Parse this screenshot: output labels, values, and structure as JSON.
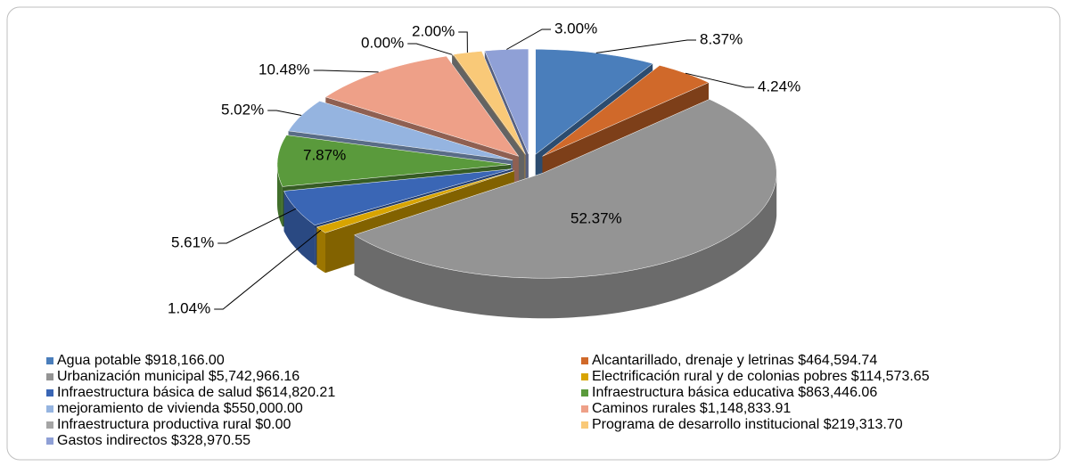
{
  "chart_data": {
    "type": "pie",
    "categories": [
      "Agua potable $918,166.00",
      "Alcantarillado, drenaje y letrinas $464,594.74",
      "Urbanización municipal $5,742,966.16",
      "Electrificación rural y de colonias pobres $114,573.65",
      "Infraestructura básica de salud $614,820.21",
      "Infraestructura básica educativa $863,446.06",
      "mejoramiento de vivienda $550,000.00",
      "Caminos rurales $1,148,833.91",
      "Infraestructura productiva rural $0.00",
      "Programa de desarrollo institucional $219,313.70",
      "Gastos indirectos $328,970.55"
    ],
    "values": [
      8.37,
      4.24,
      52.37,
      1.04,
      5.61,
      7.87,
      5.02,
      10.48,
      0,
      2,
      3
    ],
    "value_labels": [
      "8.37%",
      "4.24%",
      "52.37%",
      "1.04%",
      "5.61%",
      "7.87%",
      "5.02%",
      "10.48%",
      "0.00%",
      "2.00%",
      "3.00%"
    ],
    "colors": [
      "#4a7ebb",
      "#d0692a",
      "#949494",
      "#d8a400",
      "#3a66b5",
      "#5a9a3c",
      "#95b4e0",
      "#eea088",
      "#a5a5a5",
      "#f9c978",
      "#8fa0d6"
    ],
    "legend": "bottom"
  }
}
